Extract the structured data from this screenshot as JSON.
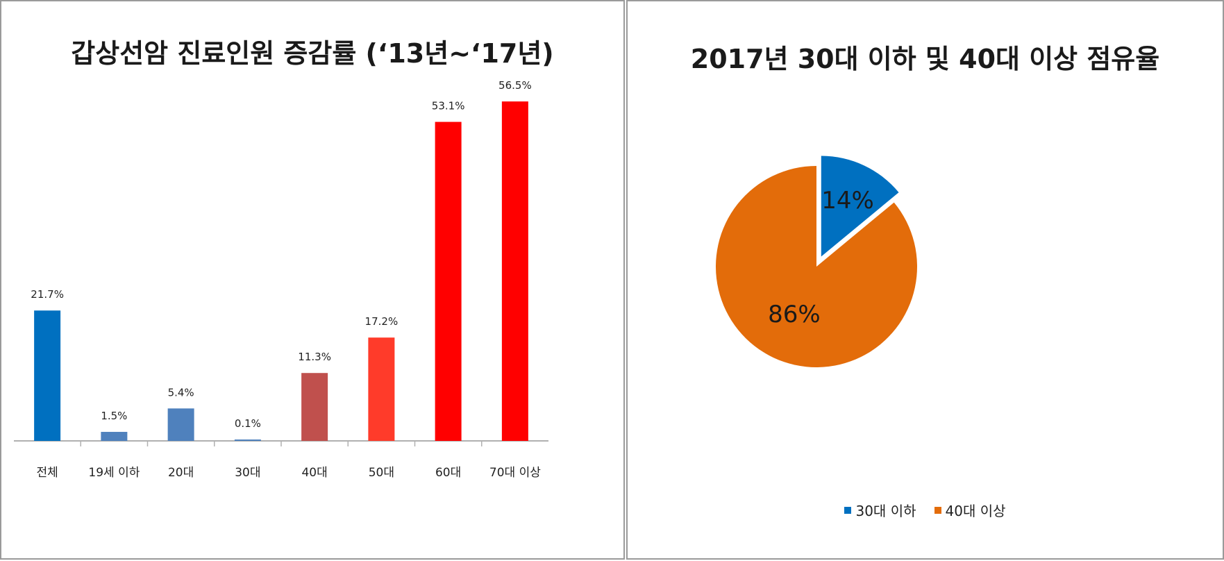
{
  "chart_data": [
    {
      "type": "bar",
      "title": "갑상선암 진료인원 증감률 (‘13년~‘17년)",
      "categories": [
        "전체",
        "19세 이하",
        "20대",
        "30대",
        "40대",
        "50대",
        "60대",
        "70대 이상"
      ],
      "values": [
        21.7,
        1.5,
        5.4,
        0.1,
        11.3,
        17.2,
        53.1,
        56.5
      ],
      "data_labels": [
        "21.7%",
        "1.5%",
        "5.4%",
        "0.1%",
        "11.3%",
        "17.2%",
        "53.1%",
        "56.5%"
      ],
      "colors": [
        "#0070c0",
        "#4f81bd",
        "#4f81bd",
        "#4f81bd",
        "#c0504d",
        "#ff3b2a",
        "#ff0000",
        "#ff0000"
      ],
      "ylim": [
        0,
        60
      ],
      "grid": false
    },
    {
      "type": "pie",
      "title": "2017년 30대 이하 및 40대 이상 점유율",
      "labels": [
        "30대 이하",
        "40대 이상"
      ],
      "values": [
        14,
        86
      ],
      "data_labels": [
        "14%",
        "86%"
      ],
      "colors": [
        "#0070c0",
        "#e36c0a"
      ],
      "exploded": "30대 이하",
      "legend_position": "bottom"
    }
  ]
}
